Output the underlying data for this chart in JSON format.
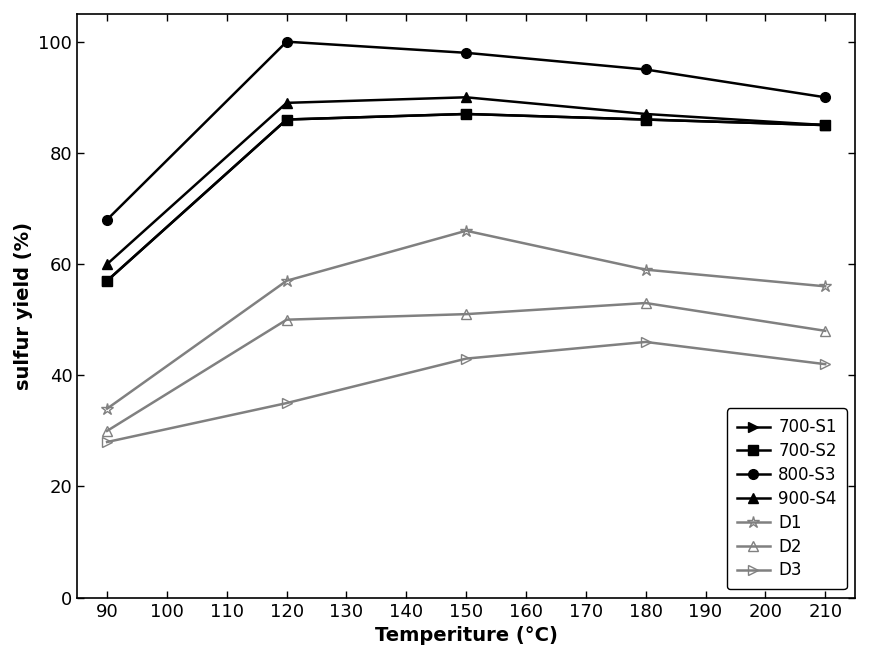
{
  "x": [
    90,
    120,
    150,
    180,
    210
  ],
  "series": {
    "700-S1": {
      "y": [
        57,
        86,
        87,
        86,
        85
      ],
      "color": "#000000",
      "marker": ">",
      "linestyle": "-",
      "markersize": 7,
      "markerfacecolor": "#000000",
      "markeredgecolor": "#000000"
    },
    "700-S2": {
      "y": [
        57,
        86,
        87,
        86,
        85
      ],
      "color": "#000000",
      "marker": "s",
      "linestyle": "-",
      "markersize": 7,
      "markerfacecolor": "#000000",
      "markeredgecolor": "#000000"
    },
    "800-S3": {
      "y": [
        68,
        100,
        98,
        95,
        90
      ],
      "color": "#000000",
      "marker": "o",
      "linestyle": "-",
      "markersize": 7,
      "markerfacecolor": "#000000",
      "markeredgecolor": "#000000"
    },
    "900-S4": {
      "y": [
        60,
        89,
        90,
        87,
        85
      ],
      "color": "#000000",
      "marker": "^",
      "linestyle": "-",
      "markersize": 7,
      "markerfacecolor": "#000000",
      "markeredgecolor": "#000000"
    },
    "D1": {
      "y": [
        34,
        57,
        66,
        59,
        56
      ],
      "color": "#808080",
      "marker": "*",
      "linestyle": "-",
      "markersize": 9,
      "markerfacecolor": "none",
      "markeredgecolor": "#808080"
    },
    "D2": {
      "y": [
        30,
        50,
        51,
        53,
        48
      ],
      "color": "#808080",
      "marker": "^",
      "linestyle": "-",
      "markersize": 7,
      "markerfacecolor": "none",
      "markeredgecolor": "#808080"
    },
    "D3": {
      "y": [
        28,
        35,
        43,
        46,
        42
      ],
      "color": "#808080",
      "marker": ">",
      "linestyle": "-",
      "markersize": 7,
      "markerfacecolor": "none",
      "markeredgecolor": "#808080"
    }
  },
  "xlabel": "Temperiture (°C)",
  "ylabel": "sulfur yield (%)",
  "xlim": [
    85,
    215
  ],
  "ylim": [
    0,
    105
  ],
  "xticks": [
    90,
    100,
    110,
    120,
    130,
    140,
    150,
    160,
    170,
    180,
    190,
    200,
    210
  ],
  "yticks": [
    0,
    20,
    40,
    60,
    80,
    100
  ],
  "legend_loc": "lower right",
  "background_color": "#ffffff",
  "font_size": 14,
  "tick_font_size": 13,
  "linewidth": 1.8
}
